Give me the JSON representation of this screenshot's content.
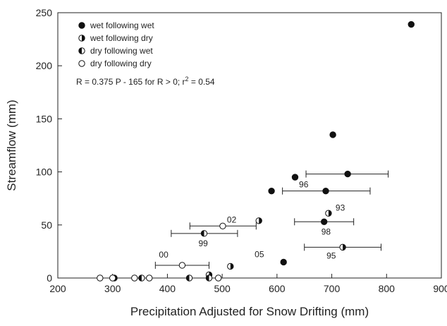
{
  "chart_data": {
    "type": "scatter",
    "xlabel": "Precipitation Adjusted for Snow Drifting (mm)",
    "ylabel": "Streamflow (mm)",
    "xlim": [
      200,
      900
    ],
    "ylim": [
      0,
      250
    ],
    "xticks": [
      200,
      300,
      400,
      500,
      600,
      700,
      800,
      900
    ],
    "yticks": [
      0,
      50,
      100,
      150,
      200,
      250
    ],
    "grid": false,
    "legend_position": "top-left",
    "equation": "R = 0.375 P - 165  for R > 0;  r",
    "equation_sup": "2",
    "equation_tail": " = 0.54",
    "series": [
      {
        "name": "wet following wet",
        "marker": "filled",
        "points": [
          {
            "x": 845,
            "y": 239
          },
          {
            "x": 702,
            "y": 135
          },
          {
            "x": 729,
            "y": 98,
            "xerr": [
              653,
              803
            ]
          },
          {
            "x": 633,
            "y": 95
          },
          {
            "x": 590,
            "y": 82
          },
          {
            "x": 689,
            "y": 82,
            "xerr": [
              610,
              770
            ],
            "label": "96"
          },
          {
            "x": 686,
            "y": 53,
            "xerr": [
              632,
              740
            ],
            "label": "98"
          },
          {
            "x": 612,
            "y": 15,
            "label": "05"
          }
        ]
      },
      {
        "name": "wet following dry",
        "marker": "half-right",
        "points": [
          {
            "x": 694,
            "y": 61,
            "label": "93"
          },
          {
            "x": 720,
            "y": 29,
            "xerr": [
              650,
              790
            ],
            "label": "95"
          },
          {
            "x": 567,
            "y": 54
          },
          {
            "x": 515,
            "y": 11
          },
          {
            "x": 476,
            "y": 3
          },
          {
            "x": 303,
            "y": 0
          }
        ]
      },
      {
        "name": "dry following wet",
        "marker": "half-left",
        "points": [
          {
            "x": 467,
            "y": 42,
            "xerr": [
              407,
              528
            ],
            "label": "99"
          },
          {
            "x": 353,
            "y": 0
          },
          {
            "x": 440,
            "y": 0
          },
          {
            "x": 476,
            "y": 0
          }
        ]
      },
      {
        "name": "dry following dry",
        "marker": "open",
        "points": [
          {
            "x": 501,
            "y": 49,
            "xerr": [
              441,
              562
            ],
            "label": "02"
          },
          {
            "x": 427,
            "y": 12,
            "xerr": [
              378,
              476
            ],
            "label": "00"
          },
          {
            "x": 277,
            "y": 0
          },
          {
            "x": 300,
            "y": 0
          },
          {
            "x": 340,
            "y": 0
          },
          {
            "x": 367,
            "y": 0
          },
          {
            "x": 493,
            "y": 0
          }
        ]
      }
    ]
  }
}
